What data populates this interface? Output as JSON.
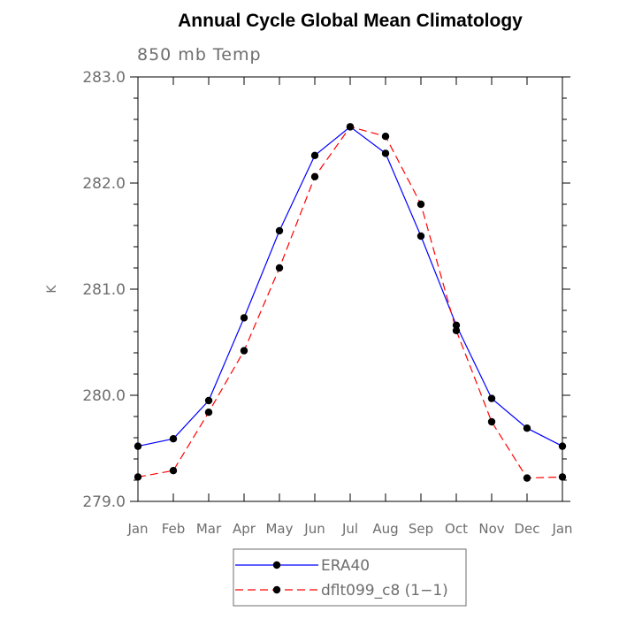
{
  "chart_data": {
    "type": "line",
    "title": "Annual Cycle Global Mean Climatology",
    "subtitle": "850 mb Temp",
    "ylabel": "K",
    "xlabel": "",
    "ylim": [
      279.0,
      283.0
    ],
    "yticks": [
      "279.0",
      "280.0",
      "281.0",
      "282.0",
      "283.0"
    ],
    "categories": [
      "Jan",
      "Feb",
      "Mar",
      "Apr",
      "May",
      "Jun",
      "Jul",
      "Aug",
      "Sep",
      "Oct",
      "Nov",
      "Dec",
      "Jan"
    ],
    "legend_position": "bottom-center",
    "series": [
      {
        "name": "ERA40",
        "color": "#0000ff",
        "dash": "solid",
        "values": [
          279.52,
          279.59,
          279.95,
          280.73,
          281.55,
          282.26,
          282.53,
          282.28,
          281.5,
          280.66,
          279.97,
          279.69,
          279.52
        ]
      },
      {
        "name": "dflt099_c8 (1−1)",
        "color": "#ff0000",
        "dash": "dashed",
        "values": [
          279.23,
          279.29,
          279.84,
          280.42,
          281.2,
          282.06,
          282.53,
          282.44,
          281.8,
          280.61,
          279.75,
          279.22,
          279.23
        ]
      }
    ]
  }
}
